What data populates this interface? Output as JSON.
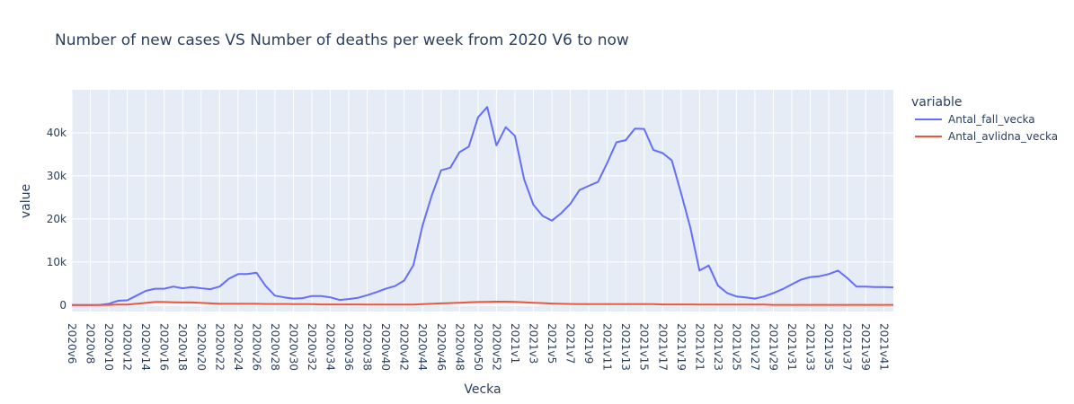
{
  "chart_data": {
    "type": "line",
    "title": "Number of new cases VS Number of deaths per week from 2020 V6 to now",
    "xlabel": "Vecka",
    "ylabel": "value",
    "ylim": [
      -1500,
      50000
    ],
    "y_ticks": [
      0,
      10000,
      20000,
      30000,
      40000
    ],
    "y_tick_labels": [
      "0",
      "10k",
      "20k",
      "30k",
      "40k"
    ],
    "x_tick_labels": [
      "2020v6",
      "2020v8",
      "2020v10",
      "2020v12",
      "2020v14",
      "2020v16",
      "2020v18",
      "2020v20",
      "2020v22",
      "2020v24",
      "2020v26",
      "2020v28",
      "2020v30",
      "2020v32",
      "2020v34",
      "2020v36",
      "2020v38",
      "2020v40",
      "2020v42",
      "2020v44",
      "2020v46",
      "2020v48",
      "2020v50",
      "2020v52",
      "2021v1",
      "2021v3",
      "2021v5",
      "2021v7",
      "2021v9",
      "2021v11",
      "2021v13",
      "2021v15",
      "2021v17",
      "2021v19",
      "2021v21",
      "2021v23",
      "2021v25",
      "2021v27",
      "2021v29",
      "2021v31",
      "2021v33",
      "2021v35",
      "2021v37",
      "2021v39",
      "2021v41"
    ],
    "legend_title": "variable",
    "legend_position": "right",
    "grid": true,
    "colors": {
      "plot_bg": "#e5ecf6",
      "grid": "#ffffff",
      "text": "#2a3f5f"
    },
    "categories": [
      "2020v6",
      "2020v7",
      "2020v8",
      "2020v9",
      "2020v10",
      "2020v11",
      "2020v12",
      "2020v13",
      "2020v14",
      "2020v15",
      "2020v16",
      "2020v17",
      "2020v18",
      "2020v19",
      "2020v20",
      "2020v21",
      "2020v22",
      "2020v23",
      "2020v24",
      "2020v25",
      "2020v26",
      "2020v27",
      "2020v28",
      "2020v29",
      "2020v30",
      "2020v31",
      "2020v32",
      "2020v33",
      "2020v34",
      "2020v35",
      "2020v36",
      "2020v37",
      "2020v38",
      "2020v39",
      "2020v40",
      "2020v41",
      "2020v42",
      "2020v43",
      "2020v44",
      "2020v45",
      "2020v46",
      "2020v47",
      "2020v48",
      "2020v49",
      "2020v50",
      "2020v51",
      "2020v52",
      "2020v53",
      "2021v1",
      "2021v2",
      "2021v3",
      "2021v4",
      "2021v5",
      "2021v6",
      "2021v7",
      "2021v8",
      "2021v9",
      "2021v10",
      "2021v11",
      "2021v12",
      "2021v13",
      "2021v14",
      "2021v15",
      "2021v16",
      "2021v17",
      "2021v18",
      "2021v19",
      "2021v20",
      "2021v21",
      "2021v22",
      "2021v23",
      "2021v24",
      "2021v25",
      "2021v26",
      "2021v27",
      "2021v28",
      "2021v29",
      "2021v30",
      "2021v31",
      "2021v32",
      "2021v33",
      "2021v34",
      "2021v35",
      "2021v36",
      "2021v37",
      "2021v38",
      "2021v39",
      "2021v40",
      "2021v41",
      "2021v42"
    ],
    "series": [
      {
        "name": "Antal_fall_vecka",
        "color": "#636efa",
        "values": [
          0,
          0,
          0,
          50,
          300,
          1000,
          1100,
          2200,
          3300,
          3800,
          3800,
          4300,
          3900,
          4200,
          3900,
          3700,
          4300,
          6100,
          7200,
          7200,
          7500,
          4400,
          2200,
          1800,
          1500,
          1600,
          2100,
          2100,
          1800,
          1200,
          1400,
          1700,
          2300,
          3000,
          3800,
          4400,
          5700,
          9300,
          18500,
          25500,
          31300,
          31900,
          35500,
          36800,
          43600,
          46000,
          37100,
          41300,
          39300,
          29200,
          23300,
          20700,
          19600,
          21300,
          23500,
          26700,
          27700,
          28600,
          33000,
          37800,
          38300,
          41000,
          40900,
          36000,
          35300,
          33600,
          26000,
          18000,
          8000,
          9200,
          4500,
          2800,
          2000,
          1800,
          1500,
          2000,
          2800,
          3700,
          4800,
          5900,
          6500,
          6700,
          7200,
          8000,
          6300,
          4300,
          4300,
          4200,
          4200,
          4100
        ]
      },
      {
        "name": "Antal_avlidna_vecka",
        "color": "#ef553b",
        "values": [
          0,
          0,
          0,
          0,
          50,
          100,
          100,
          300,
          500,
          700,
          700,
          650,
          600,
          600,
          500,
          400,
          300,
          300,
          300,
          300,
          300,
          250,
          250,
          250,
          200,
          200,
          200,
          150,
          150,
          150,
          150,
          150,
          100,
          100,
          100,
          100,
          100,
          100,
          200,
          300,
          400,
          450,
          550,
          650,
          700,
          750,
          800,
          800,
          750,
          650,
          550,
          450,
          350,
          300,
          250,
          200,
          200,
          200,
          200,
          200,
          200,
          200,
          200,
          200,
          150,
          150,
          150,
          150,
          100,
          100,
          100,
          100,
          100,
          100,
          100,
          100,
          50,
          50,
          50,
          50,
          50,
          50,
          50,
          50,
          50,
          50,
          50,
          50,
          50,
          50
        ]
      }
    ]
  }
}
